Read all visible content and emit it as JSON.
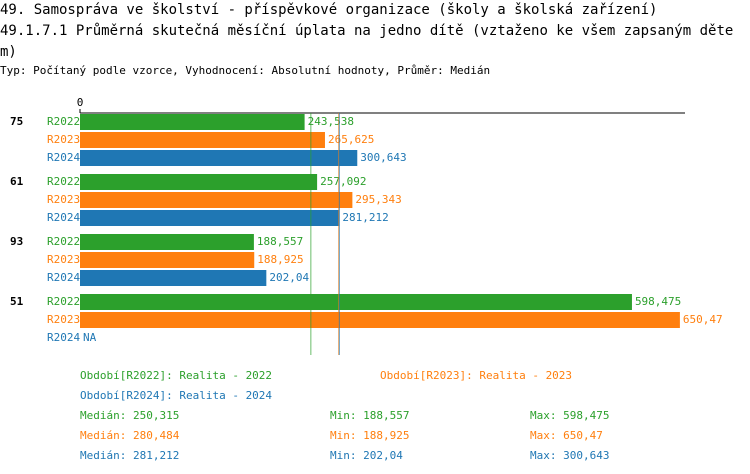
{
  "chart_data": {
    "type": "bar",
    "orientation": "horizontal",
    "title": "49. Samospráva ve školství - příspěvkové organizace (školy a školská zařízení)",
    "subtitle": "49.1.7.1 Průměrná skutečná měsíční úplata na jedno dítě (vztaženo ke všem zapsaným dětem)",
    "description": "Typ: Počítaný podle vzorce, Vyhodnocení: Absolutní hodnoty, Průměr: Medián",
    "categories": [
      "75",
      "61",
      "93",
      "51"
    ],
    "series": [
      {
        "name": "R2022",
        "color": "#2ca02c",
        "legend": "Období[R2022]: Realita - 2022",
        "values": [
          243.538,
          257.092,
          188.557,
          598.475
        ],
        "value_labels": [
          "243,538",
          "257,092",
          "188,557",
          "598,475"
        ]
      },
      {
        "name": "R2023",
        "color": "#ff7f0e",
        "legend": "Období[R2023]: Realita - 2023",
        "values": [
          265.625,
          295.343,
          188.925,
          650.47
        ],
        "value_labels": [
          "265,625",
          "295,343",
          "188,925",
          "650,47"
        ]
      },
      {
        "name": "R2024",
        "color": "#1f77b4",
        "legend": "Období[R2024]: Realita - 2024",
        "values": [
          300.643,
          281.212,
          202.04,
          null
        ],
        "value_labels": [
          "300,643",
          "281,212",
          "202,04",
          "NA"
        ]
      }
    ],
    "xlim": [
      0,
      656
    ],
    "xticks": [
      0
    ],
    "stat_names": [
      "Medián:",
      "Min:",
      "Max:"
    ],
    "stats": [
      {
        "values": [
          250.315,
          188.557,
          598.475
        ],
        "value_labels": [
          "250,315",
          "188,557",
          "598,475"
        ]
      },
      {
        "values": [
          280.484,
          188.925,
          650.47
        ],
        "value_labels": [
          "280,484",
          "188,925",
          "650,47"
        ]
      },
      {
        "values": [
          281.212,
          202.04,
          300.643
        ],
        "value_labels": [
          "281,212",
          "202,04",
          "300,643"
        ]
      }
    ]
  }
}
